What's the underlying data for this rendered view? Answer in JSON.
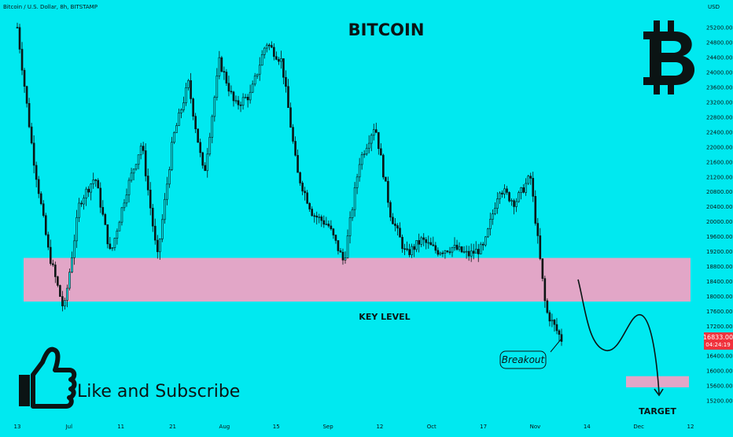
{
  "header": {
    "symbol": "Bitcoin / U.S. Dollar, 8h, BITSTAMP"
  },
  "axis": {
    "currency_label": "USD"
  },
  "annotations": {
    "title": "BITCOIN",
    "key_level_label": "KEY LEVEL",
    "breakout_label": "Breakout",
    "target_label": "TARGET",
    "like_text": "Like and Subscribe",
    "current_price": "16833.00",
    "countdown": "04:24:19"
  },
  "colors": {
    "background": "#00e9f0",
    "candle": "#0b1414",
    "key_zone": "#e2a6c7",
    "price_badge": "#f0323c",
    "text": "#0b1414"
  },
  "icons": [
    "bitcoin-logo-icon",
    "thumbs-up-icon"
  ],
  "chart_data": {
    "type": "candlestick",
    "title": "BITCOIN",
    "x_ticks": [
      "13",
      "Jul",
      "11",
      "21",
      "Aug",
      "15",
      "Sep",
      "12",
      "Oct",
      "17",
      "Nov",
      "14",
      "Dec",
      "12"
    ],
    "y_ticks": [
      15200,
      15600,
      16000,
      16400,
      16800,
      17200,
      17600,
      18000,
      18400,
      18800,
      19200,
      19600,
      20000,
      20400,
      20800,
      21200,
      21600,
      22000,
      22400,
      22800,
      23200,
      23600,
      24000,
      24400,
      24800,
      25200
    ],
    "ylim": [
      15000,
      25300
    ],
    "last_price": 16833,
    "key_level_zone": [
      17850,
      19020
    ],
    "target_zone": [
      15550,
      15850
    ],
    "path_points": [
      [
        "13",
        25200
      ],
      [
        "13",
        21800
      ],
      [
        "13",
        19200
      ],
      [
        "13",
        17600
      ],
      [
        "13",
        20500
      ],
      [
        "13",
        21200
      ],
      [
        "Jul",
        19100
      ],
      [
        "Jul",
        20800
      ],
      [
        "11",
        22100
      ],
      [
        "11",
        19000
      ],
      [
        "21",
        22200
      ],
      [
        "21",
        23700
      ],
      [
        "21",
        21200
      ],
      [
        "Aug",
        24300
      ],
      [
        "Aug",
        23100
      ],
      [
        "Aug",
        23400
      ],
      [
        "15",
        24800
      ],
      [
        "15",
        24300
      ],
      [
        "15",
        21300
      ],
      [
        "Sep",
        20200
      ],
      [
        "Sep",
        19900
      ],
      [
        "Sep",
        18900
      ],
      [
        "12",
        21600
      ],
      [
        "12",
        22600
      ],
      [
        "12",
        20200
      ],
      [
        "12",
        19100
      ],
      [
        "Oct",
        19500
      ],
      [
        "Oct",
        19200
      ],
      [
        "Oct",
        19300
      ],
      [
        "17",
        19100
      ],
      [
        "17",
        19300
      ],
      [
        "Nov",
        20900
      ],
      [
        "Nov",
        20500
      ],
      [
        "Nov",
        21200
      ],
      [
        "Nov",
        17600
      ],
      [
        "Nov",
        16833
      ]
    ]
  }
}
